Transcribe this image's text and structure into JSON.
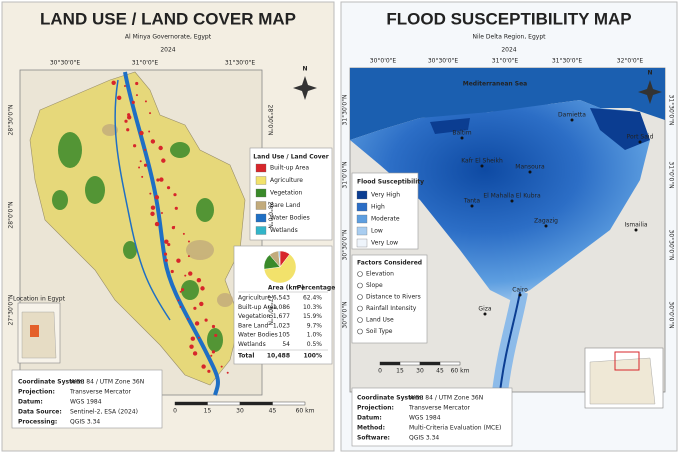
{
  "left": {
    "title": "LAND USE / LAND COVER MAP",
    "subtitle": "Al Minya Governorate, Egypt",
    "year": "2024",
    "lon_labels": [
      "30°30'0\"E",
      "31°0'0\"E",
      "31°30'0\"E"
    ],
    "lat_labels": [
      "28°30'0\"N",
      "28°0'0\"N",
      "27°30'0\"N"
    ],
    "north": "N",
    "legend": {
      "title": "Land Use / Land Cover",
      "items": [
        {
          "label": "Built-up Area",
          "color": "#d7262b"
        },
        {
          "label": "Agriculture",
          "color": "#f2e26b"
        },
        {
          "label": "Vegetation",
          "color": "#3a8a2a"
        },
        {
          "label": "Bare Land",
          "color": "#c2ab7c"
        },
        {
          "label": "Water Bodies",
          "color": "#1f6fc4"
        },
        {
          "label": "Wetlands",
          "color": "#32b5c9"
        }
      ]
    },
    "pie": {
      "values": [
        10.3,
        62.4,
        15.9,
        9.7,
        1.0,
        0.5
      ]
    },
    "table": {
      "header": [
        "Area (km²)",
        "Percentage"
      ],
      "rows": [
        [
          "Agriculture",
          "6,543",
          "62.4%"
        ],
        [
          "Built-up Area",
          "1,086",
          "10.3%"
        ],
        [
          "Vegetation",
          "1,677",
          "15.9%"
        ],
        [
          "Bare Land",
          "1,023",
          "9.7%"
        ],
        [
          "Water Bodies",
          "105",
          "1.0%"
        ],
        [
          "Wetlands",
          "54",
          "0.5%"
        ]
      ],
      "total": [
        "Total",
        "10,488",
        "100%"
      ]
    },
    "inset_label": "Location in Egypt",
    "scale": [
      "0",
      "15",
      "30",
      "45",
      "60 km"
    ],
    "info": [
      [
        "Coordinate System:",
        "WGS 84 / UTM Zone 36N"
      ],
      [
        "Projection:",
        "Transverse Mercator"
      ],
      [
        "Datum:",
        "WGS 1984"
      ],
      [
        "Data Source:",
        "Sentinel-2, ESA (2024)"
      ],
      [
        "Processing:",
        "QGIS 3.34"
      ]
    ]
  },
  "right": {
    "title": "FLOOD SUSCEPTIBILITY MAP",
    "subtitle": "Nile Delta Region, Egypt",
    "year": "2024",
    "lon_labels": [
      "30°0'0\"E",
      "30°30'0\"E",
      "31°0'0\"E",
      "31°30'0\"E",
      "32°0'0\"E"
    ],
    "lat_labels": [
      "31°30'0\"N",
      "31°0'0\"N",
      "30°30'0\"N",
      "30°0'0\"N"
    ],
    "north": "N",
    "sea": "Mediterranean Sea",
    "cities": [
      "Damietta",
      "Port Said",
      "Baltim",
      "Kafr El Sheikh",
      "Mansoura",
      "Tanta",
      "El Mahalla El Kubra",
      "Zagazig",
      "Ismailia",
      "Cairo",
      "Giza"
    ],
    "legend": {
      "title": "Flood Susceptibility",
      "items": [
        {
          "label": "Very High",
          "color": "#0b3d91"
        },
        {
          "label": "High",
          "color": "#2c6ec6"
        },
        {
          "label": "Moderate",
          "color": "#5d9ee0"
        },
        {
          "label": "Low",
          "color": "#a9cdf0"
        },
        {
          "label": "Very Low",
          "color": "#eef4fb"
        }
      ]
    },
    "factors": {
      "title": "Factors Considered",
      "items": [
        "Elevation",
        "Slope",
        "Distance to Rivers",
        "Rainfall Intensity",
        "Land Use",
        "Soil Type"
      ]
    },
    "scale": [
      "0",
      "15",
      "30",
      "45",
      "60 km"
    ],
    "info": [
      [
        "Coordinate System:",
        "WGS 84 / UTM Zone 36N"
      ],
      [
        "Projection:",
        "Transverse Mercator"
      ],
      [
        "Datum:",
        "WGS 1984"
      ],
      [
        "Method:",
        "Multi-Criteria Evaluation (MCE)"
      ],
      [
        "Software:",
        "QGIS 3.34"
      ]
    ]
  }
}
